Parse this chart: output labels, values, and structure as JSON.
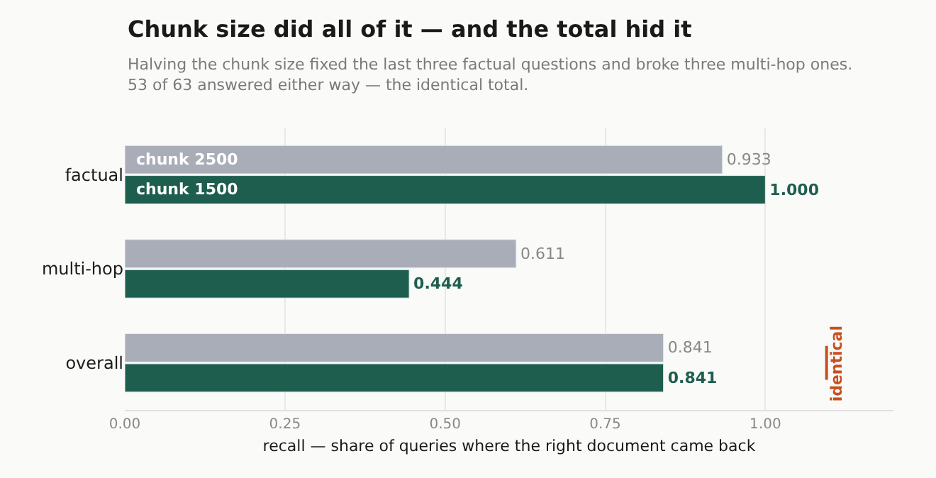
{
  "chart_data": {
    "type": "bar",
    "orientation": "horizontal",
    "title": "Chunk size did all of it — and the total hid it",
    "subtitle": "Halving the chunk size fixed the last three factual questions and broke three multi-hop ones.\n53 of 63 answered either way — the identical total.",
    "xlabel": "recall — share of queries where the right document came back",
    "categories": [
      "factual",
      "multi-hop",
      "overall"
    ],
    "series": [
      {
        "name": "chunk 2500",
        "color": "#a8adb7",
        "values": [
          0.933,
          0.611,
          0.841
        ],
        "value_labels": [
          "0.933",
          "0.611",
          "0.841"
        ]
      },
      {
        "name": "chunk 1500",
        "color": "#1e5e4e",
        "values": [
          1.0,
          0.444,
          0.841
        ],
        "value_labels": [
          "1.000",
          "0.444",
          "0.841"
        ]
      }
    ],
    "xlim": [
      0,
      1.2
    ],
    "xticks": [
      {
        "value": 0,
        "label": "0.00"
      },
      {
        "value": 0.25,
        "label": "0.25"
      },
      {
        "value": 0.5,
        "label": "0.50"
      },
      {
        "value": 0.75,
        "label": "0.75"
      },
      {
        "value": 1,
        "label": "1.00"
      }
    ],
    "grid": "x",
    "legend": false,
    "annotations": [
      "identical"
    ]
  }
}
